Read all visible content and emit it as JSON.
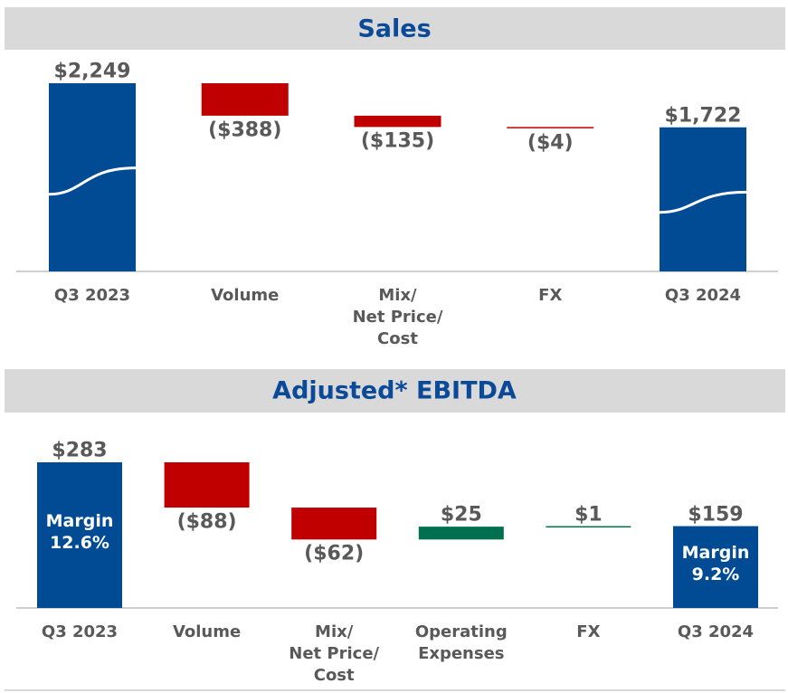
{
  "chart_data": [
    {
      "type": "waterfall",
      "title": "Sales",
      "categories": [
        "Q3 2023",
        "Volume",
        "Mix/\nNet Price/\nCost",
        "FX",
        "Q3 2024"
      ],
      "values": [
        2249,
        -388,
        -135,
        -4,
        1722
      ],
      "value_labels": [
        "$2,249",
        "($388)",
        "($135)",
        "($4)",
        "$1,722"
      ],
      "measure": [
        "total",
        "relative",
        "relative",
        "relative",
        "total"
      ],
      "total_color": "#004b93",
      "decrease_color": "#c00000",
      "increase_color": "#00704f"
    },
    {
      "type": "waterfall",
      "title": "Adjusted* EBITDA",
      "categories": [
        "Q3 2023",
        "Volume",
        "Mix/\nNet Price/\nCost",
        "Operating\nExpenses",
        "FX",
        "Q3 2024"
      ],
      "values": [
        283,
        -88,
        -62,
        25,
        1,
        159
      ],
      "value_labels": [
        "$283",
        "($88)",
        "($62)",
        "$25",
        "$1",
        "$159"
      ],
      "inner_labels": [
        "Margin\n12.6%",
        null,
        null,
        null,
        null,
        "Margin\n9.2%"
      ],
      "measure": [
        "total",
        "relative",
        "relative",
        "relative",
        "relative",
        "total"
      ],
      "total_color": "#004b93",
      "decrease_color": "#c00000",
      "increase_color": "#00704f"
    }
  ]
}
